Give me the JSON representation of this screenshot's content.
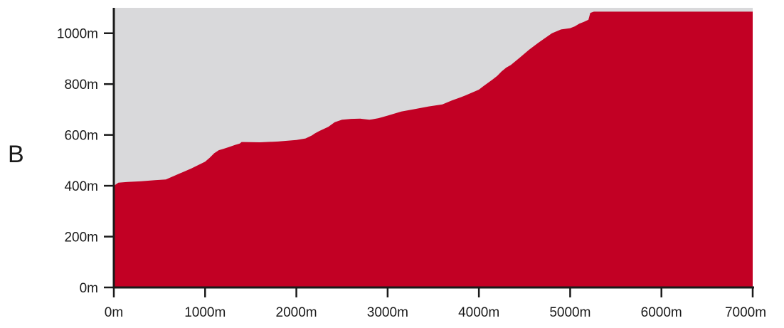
{
  "panel_label": "B",
  "chart_data": {
    "type": "area",
    "panel_label": "B",
    "xlim": [
      0,
      7000
    ],
    "ylim": [
      0,
      1100
    ],
    "x_ticks": [
      0,
      1000,
      2000,
      3000,
      4000,
      5000,
      6000,
      7000
    ],
    "x_tick_labels": [
      "0m",
      "1000m",
      "2000m",
      "3000m",
      "4000m",
      "5000m",
      "6000m",
      "7000m"
    ],
    "y_ticks": [
      0,
      200,
      400,
      600,
      800,
      1000
    ],
    "y_tick_labels": [
      "0m",
      "200m",
      "400m",
      "600m",
      "800m",
      "1000m"
    ],
    "grid": false,
    "colors": {
      "fill": "#c20024",
      "background": "#d9d9db",
      "axis": "#1a1a1a"
    },
    "x": [
      0,
      50,
      150,
      300,
      450,
      570,
      700,
      850,
      1000,
      1050,
      1100,
      1150,
      1200,
      1260,
      1330,
      1380,
      1400,
      1420,
      1600,
      1800,
      2000,
      2100,
      2170,
      2200,
      2250,
      2350,
      2420,
      2500,
      2600,
      2700,
      2800,
      2830,
      2900,
      3000,
      3150,
      3300,
      3450,
      3600,
      3700,
      3800,
      3850,
      4000,
      4050,
      4100,
      4150,
      4200,
      4250,
      4300,
      4350,
      4450,
      4550,
      4650,
      4700,
      4800,
      4900,
      5000,
      5050,
      5100,
      5150,
      5200,
      5220,
      5260,
      5400,
      6000,
      7000
    ],
    "values": [
      400,
      412,
      415,
      418,
      422,
      425,
      445,
      468,
      495,
      510,
      528,
      540,
      545,
      552,
      561,
      566,
      572,
      572,
      571,
      574,
      580,
      586,
      598,
      605,
      615,
      632,
      650,
      660,
      663,
      664,
      660,
      661,
      666,
      676,
      692,
      702,
      712,
      720,
      735,
      748,
      755,
      778,
      792,
      805,
      818,
      832,
      850,
      865,
      875,
      905,
      935,
      962,
      975,
      1000,
      1015,
      1020,
      1027,
      1038,
      1045,
      1053,
      1080,
      1085,
      1085,
      1085,
      1085
    ]
  }
}
